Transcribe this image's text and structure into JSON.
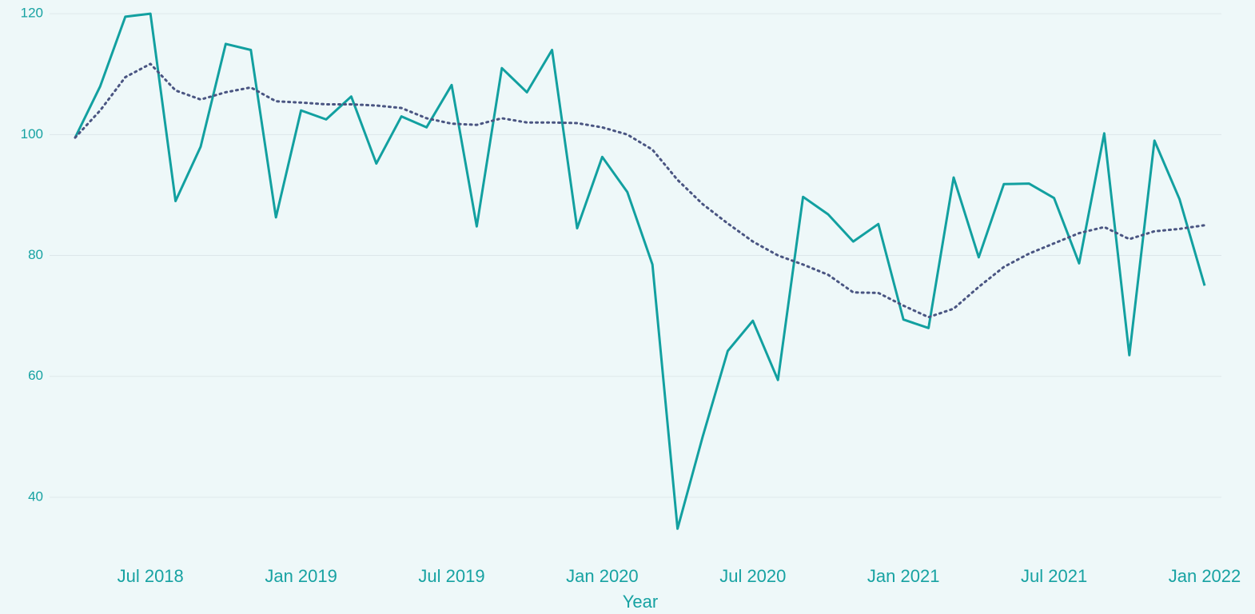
{
  "chart_data": {
    "type": "line",
    "x_label": "Year",
    "x": [
      "2018-04",
      "2018-05",
      "2018-06",
      "2018-07",
      "2018-08",
      "2018-09",
      "2018-10",
      "2018-11",
      "2018-12",
      "2019-01",
      "2019-02",
      "2019-03",
      "2019-04",
      "2019-05",
      "2019-06",
      "2019-07",
      "2019-08",
      "2019-09",
      "2019-10",
      "2019-11",
      "2019-12",
      "2020-01",
      "2020-02",
      "2020-03",
      "2020-04",
      "2020-05",
      "2020-06",
      "2020-07",
      "2020-08",
      "2020-09",
      "2020-10",
      "2020-11",
      "2020-12",
      "2021-01",
      "2021-02",
      "2021-03",
      "2021-04",
      "2021-05",
      "2021-06",
      "2021-07",
      "2021-08",
      "2021-09",
      "2021-10",
      "2021-11",
      "2021-12",
      "2022-01"
    ],
    "series": [
      {
        "color": "#12a0a0",
        "style": "solid",
        "values": [
          99.5,
          108,
          119.5,
          120,
          89,
          98,
          115,
          114,
          86.3,
          104,
          102.5,
          106.3,
          95.2,
          103,
          101.2,
          108.2,
          84.8,
          111,
          107,
          114,
          84.5,
          96.3,
          90.5,
          78.5,
          34.8,
          50,
          64.2,
          69.2,
          59.4,
          89.7,
          86.8,
          82.3,
          85.2,
          69.4,
          68,
          92.9,
          79.7,
          91.8,
          91.9,
          89.5,
          78.7,
          100.2,
          63.5,
          99,
          89.3,
          75
        ]
      },
      {
        "color": "#4a5582",
        "style": "dotted",
        "values": [
          99.5,
          104,
          109.5,
          111.7,
          107.3,
          105.8,
          107,
          107.8,
          105.5,
          105.3,
          105,
          105,
          104.8,
          104.4,
          102.7,
          101.8,
          101.6,
          102.7,
          102,
          102,
          101.9,
          101.2,
          100,
          97.5,
          92.5,
          88.5,
          85.3,
          82.3,
          80,
          78.5,
          76.8,
          73.9,
          73.8,
          71.7,
          69.8,
          71.2,
          74.8,
          78.1,
          80.3,
          82,
          83.7,
          84.7,
          82.7,
          84,
          84.4,
          85
        ]
      }
    ],
    "xticks": [
      {
        "value": "2018-07",
        "label": "Jul 2018"
      },
      {
        "value": "2019-01",
        "label": "Jan 2019"
      },
      {
        "value": "2019-07",
        "label": "Jul 2019"
      },
      {
        "value": "2020-01",
        "label": "Jan 2020"
      },
      {
        "value": "2020-07",
        "label": "Jul 2020"
      },
      {
        "value": "2021-01",
        "label": "Jan 2021"
      },
      {
        "value": "2021-07",
        "label": "Jul 2021"
      },
      {
        "value": "2022-01",
        "label": "Jan 2022"
      }
    ],
    "ylim": [
      31,
      122
    ],
    "yticks": [
      40,
      60,
      80,
      100,
      120
    ],
    "grid": true
  }
}
